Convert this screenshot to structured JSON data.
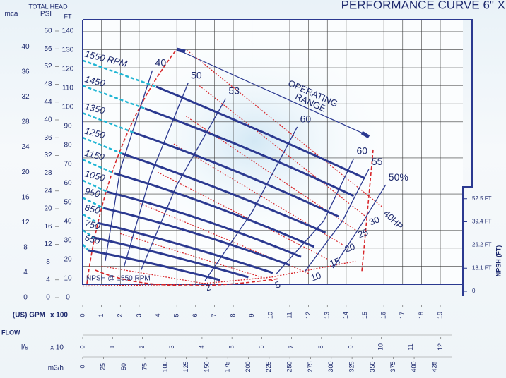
{
  "chart_data": {
    "type": "line",
    "title": "PERFORMANCE CURVE 6\" X",
    "header": "TOTAL HEAD",
    "xlim": [
      0,
      20.2
    ],
    "ylim": [
      0,
      146.6
    ],
    "x_axes": [
      {
        "label": "(US) GPM",
        "unit": "x 100",
        "lim": [
          0,
          20.2
        ],
        "ticks": [
          0,
          1,
          2,
          3,
          4,
          5,
          6,
          7,
          8,
          9,
          10,
          11,
          12,
          13,
          14,
          15,
          16,
          17,
          18,
          19
        ]
      },
      {
        "label": "l/s",
        "unit": "x 10",
        "lim": [
          0,
          12.74
        ],
        "ticks": [
          0,
          1,
          2,
          3,
          4,
          5,
          6,
          7,
          8,
          9,
          10,
          11,
          12
        ]
      },
      {
        "label": "m3/h",
        "lim": [
          0,
          458.8
        ],
        "ticks": [
          0,
          25,
          50,
          75,
          100,
          125,
          150,
          175,
          200,
          225,
          250,
          275,
          300,
          325,
          350,
          375,
          400,
          425
        ]
      }
    ],
    "flow_label": "FLOW",
    "y_axes": [
      {
        "label": "mca",
        "lim": [
          0,
          42.5
        ],
        "ticks": [
          0,
          4,
          8,
          12,
          16,
          20,
          24,
          28,
          32,
          36,
          40
        ]
      },
      {
        "label": "PSI",
        "lim": [
          0,
          60
        ],
        "ticks": [
          0,
          4,
          8,
          12,
          16,
          20,
          24,
          28,
          32,
          36,
          40,
          44,
          48,
          52,
          56,
          60
        ]
      },
      {
        "label": "FT",
        "lim": [
          0,
          140
        ],
        "ticks": [
          0,
          10,
          20,
          30,
          40,
          50,
          60,
          70,
          80,
          90,
          100,
          110,
          120,
          130,
          140
        ]
      }
    ],
    "grid": true,
    "series": [
      {
        "name": "1550 RPM",
        "color": "#2b3990",
        "x": [
          3.9,
          9.5,
          15.0
        ],
        "values": [
          109.5,
          85.3,
          58.7
        ]
      },
      {
        "name": "1450",
        "color": "#2b3990",
        "x": [
          3.3,
          9.0,
          14.4
        ],
        "values": [
          97.4,
          75.5,
          48.9
        ]
      },
      {
        "name": "1350",
        "color": "#2b3990",
        "x": [
          2.7,
          8.0,
          13.6
        ],
        "values": [
          84.1,
          64.9,
          37.5
        ]
      },
      {
        "name": "1250",
        "color": "#2b3990",
        "x": [
          2.1,
          7.0,
          12.9
        ],
        "values": [
          72.4,
          55.1,
          28.6
        ]
      },
      {
        "name": "1150",
        "color": "#2b3990",
        "x": [
          1.7,
          6.5,
          12.3
        ],
        "values": [
          61.4,
          46.9,
          20.7
        ]
      },
      {
        "name": "1050",
        "color": "#2b3990",
        "x": [
          1.3,
          6.0,
          11.6
        ],
        "values": [
          51.2,
          39.1,
          15.2
        ]
      },
      {
        "name": "950",
        "color": "#2b3990",
        "x": [
          1.1,
          5.5,
          11.0
        ],
        "values": [
          42.2,
          31.3,
          10.6
        ]
      },
      {
        "name": "850",
        "color": "#2b3990",
        "x": [
          0.8,
          5.0,
          10.1
        ],
        "values": [
          34.0,
          23.5,
          6.3
        ]
      },
      {
        "name": "750",
        "color": "#2b3990",
        "x": [
          0.6,
          4.5,
          8.8
        ],
        "values": [
          25.8,
          16.8,
          3.9
        ]
      },
      {
        "name": "650",
        "color": "#2b3990",
        "x": [
          0.3,
          4.0,
          7.3
        ],
        "values": [
          18.8,
          11.3,
          2.3
        ]
      }
    ],
    "efficiency_curves": [
      {
        "label": "40",
        "color": "#2b3990",
        "x": [
          1.2,
          2.0,
          3.7
        ],
        "values": [
          12.9,
          63.7,
          118.5
        ]
      },
      {
        "label": "50",
        "color": "#2b3990",
        "x": [
          2.2,
          3.6,
          5.6
        ],
        "values": [
          9.8,
          60.0,
          111.5
        ]
      },
      {
        "label": "53",
        "color": "#2b3990",
        "x": [
          3.1,
          5.0,
          7.6
        ],
        "values": [
          7.8,
          55.0,
          102.9
        ]
      },
      {
        "label": "60",
        "color": "#2b3990",
        "x": [
          6.5,
          9.0,
          11.4
        ],
        "values": [
          2.0,
          40.0,
          87.2
        ]
      },
      {
        "label": "60",
        "color": "#2b3990",
        "x": [
          10.3,
          12.8,
          14.4
        ],
        "values": [
          5.9,
          35.0,
          69.6
        ]
      },
      {
        "label": "55",
        "color": "#2b3990",
        "x": [
          11.8,
          13.8,
          15.2
        ],
        "values": [
          7.0,
          35.0,
          63.7
        ]
      },
      {
        "label": "50%",
        "color": "#2b3990",
        "x": [
          13.3,
          14.8,
          16.1
        ],
        "values": [
          9.0,
          33.0,
          55.1
        ]
      }
    ],
    "hp_curves": [
      {
        "label": "2",
        "color": "#d7262a",
        "x": [
          6.4,
          1.0
        ],
        "values": [
          0.5,
          10
        ]
      },
      {
        "label": "5",
        "color": "#d7262a",
        "x": [
          10.1,
          2.0
        ],
        "values": [
          2,
          28
        ]
      },
      {
        "label": "10",
        "color": "#d7262a",
        "x": [
          12.0,
          3.0
        ],
        "values": [
          6,
          45
        ]
      },
      {
        "label": "15",
        "color": "#d7262a",
        "x": [
          13.0,
          4.0
        ],
        "values": [
          14,
          62
        ]
      },
      {
        "label": "20",
        "color": "#d7262a",
        "x": [
          13.8,
          4.8
        ],
        "values": [
          22,
          78
        ]
      },
      {
        "label": "25",
        "color": "#d7262a",
        "x": [
          14.5,
          5.5
        ],
        "values": [
          30,
          93
        ]
      },
      {
        "label": "30",
        "color": "#d7262a",
        "x": [
          15.1,
          6.2
        ],
        "values": [
          37,
          110
        ]
      },
      {
        "label": "40HP",
        "color": "#d7262a",
        "x": [
          15.9,
          5.5
        ],
        "values": [
          43,
          130
        ]
      }
    ],
    "operating_range": [
      "OPERATING",
      "RANGE"
    ],
    "npsh": {
      "label": "NPSH @ 1550 RPM",
      "axis_label": "NPSH (FT)",
      "color": "#d7262a",
      "y2lim": [
        0,
        60
      ],
      "y2ticks": [
        {
          "value": 0,
          "label": "0"
        },
        {
          "value": 13.1,
          "label": "13.1 FT"
        },
        {
          "value": 26.2,
          "label": "26.2 FT"
        },
        {
          "value": 39.4,
          "label": "39.4 FT"
        },
        {
          "value": 52.5,
          "label": "52.5 FT"
        }
      ],
      "x": [
        0,
        6,
        10,
        14.5
      ],
      "values": [
        3,
        4,
        8,
        17
      ]
    }
  }
}
